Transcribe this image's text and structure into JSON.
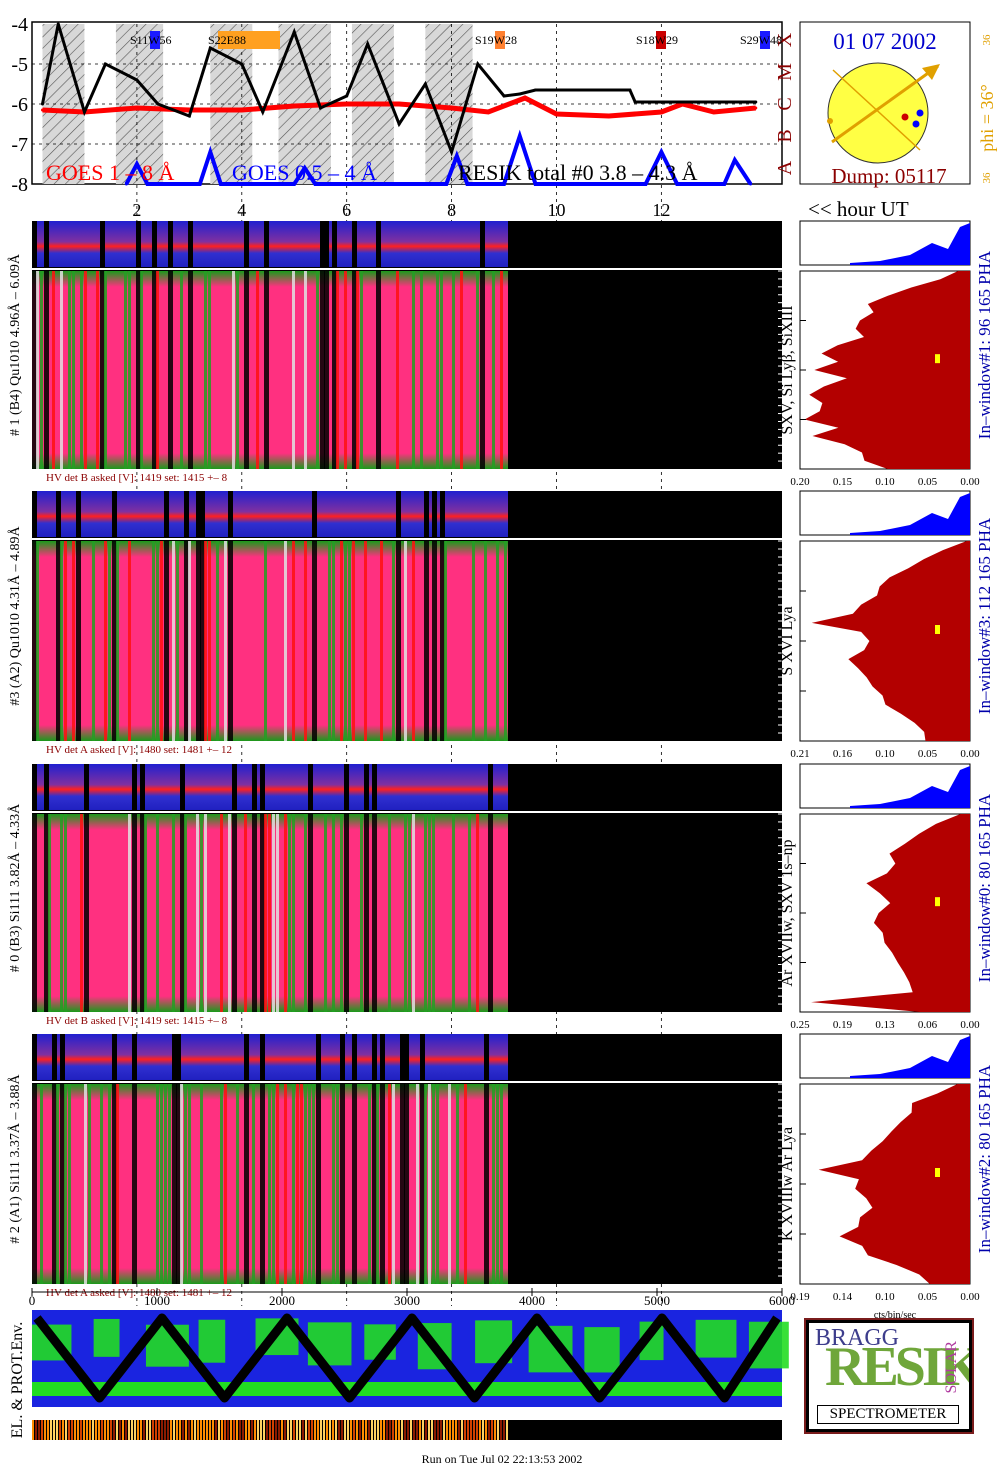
{
  "goes": {
    "ytick_labels": [
      "-4",
      "-5",
      "-6",
      "-7",
      "-8"
    ],
    "class_letters": [
      "X",
      "M",
      "C",
      "B",
      "A"
    ],
    "legend_goes_long": "GOES 1 – 8 Å",
    "legend_goes_short": "GOES 0.5 – 4 Å",
    "legend_resik": "RESIK total #0  3.8 – 4.3 Å",
    "active_regions": [
      {
        "label": "S11W56",
        "color": "#1a1aff"
      },
      {
        "label": "S22E88",
        "color": "#ffa020"
      },
      {
        "label": "S19W28",
        "color": "#ff8030"
      },
      {
        "label": "S18W29",
        "color": "#cc0000"
      },
      {
        "label": "S29W48",
        "color": "#1a1aff"
      }
    ],
    "hour_ticks": [
      "2",
      "4",
      "6",
      "8",
      "10",
      "12"
    ],
    "hour_label": "<< hour UT"
  },
  "sun_panel": {
    "date": "01 07 2002",
    "phi_label": "phi = 36°",
    "phi_small_top": "36",
    "phi_small_bottom": "36",
    "dump": "Dump: 05117"
  },
  "spectra_panels": [
    {
      "id": "1",
      "left_label": "# 1 (B4) Qu1010 4.96Å – 6.09Å",
      "hv_text": "HV det B asked [V]:  1419 set:  1415  +–    8",
      "line_label": "SXV, Si Lyβ, SiXIII",
      "window_label": "In–window#1:   96 165  PHA",
      "axis_ticks": [
        "0.20",
        "0.15",
        "0.10",
        "0.05",
        "0.00"
      ]
    },
    {
      "id": "3",
      "left_label": "#3 (A2) Qu1010  4.31Å – 4.89Å",
      "hv_text": "HV det A asked [V]:  1480 set:  1481  +–    12",
      "line_label": "S XVI Lya",
      "window_label": "In–window#3:  112 165  PHA",
      "axis_ticks": [
        "0.21",
        "0.16",
        "0.10",
        "0.05",
        "0.00"
      ]
    },
    {
      "id": "0",
      "left_label": "# 0 (B3) Si111  3.82Å – 4.33Å",
      "hv_text": "HV det B asked [V]:  1419 set:  1415  +–    8",
      "line_label": "Ar XVIIw,  SXV 1s–np",
      "window_label": "In–window#0:   80 165  PHA",
      "axis_ticks": [
        "0.25",
        "0.19",
        "0.13",
        "0.06",
        "0.00"
      ]
    },
    {
      "id": "2",
      "left_label": "# 2 (A1) Si111  3.37Å – 3.88Å",
      "hv_text": "HV det A asked [V]:  1480 set:  1481  +–    12",
      "line_label": "K XVIIIw  Ar Lya",
      "window_label": "In–window#2:   80 165  PHA",
      "axis_ticks": [
        "0.19",
        "0.14",
        "0.10",
        "0.05",
        "0.00"
      ]
    }
  ],
  "spectra_unit": "cts/bin/sec",
  "bottom": {
    "xtick_labels": [
      "0",
      "1000",
      "2000",
      "3000",
      "4000",
      "5000",
      "6000"
    ],
    "env_label": "EL. & PROT.Env."
  },
  "logo": {
    "bragg": "BRAGG",
    "resik": "RESIK",
    "solar": "SOLAR",
    "spectrometer": "SPECTROMETER"
  },
  "footer": "Run on Tue Jul 02 22:13:53 2002",
  "colors": {
    "goes_long": "#ff0000",
    "goes_short": "#0000ff",
    "resik": "#000000",
    "spectrum_fill": "#b30000",
    "pha_fill": "#0000ff",
    "sun": "#ffff44",
    "orbit_track": "#000000",
    "label_dark_red": "#8b0000",
    "label_blue": "#0000aa",
    "phi_color": "#e0a000"
  },
  "chart_data": [
    {
      "type": "line",
      "title": "",
      "xlabel": "<< hour UT",
      "ylabel": "",
      "x_ticks": [
        2,
        4,
        6,
        8,
        10,
        12
      ],
      "ylim": [
        -8,
        -4
      ],
      "series": [
        {
          "name": "GOES 1 – 8 Å",
          "x": [
            0.2,
            1,
            2,
            3,
            4,
            5,
            6,
            7,
            8,
            8.7,
            9.4,
            10,
            11,
            12,
            12.4,
            13,
            13.8
          ],
          "values": [
            -6.15,
            -6.2,
            -6.1,
            -6.15,
            -6.15,
            -6.05,
            -6.0,
            -6.0,
            -6.1,
            -6.2,
            -5.85,
            -6.25,
            -6.3,
            -6.2,
            -6.0,
            -6.2,
            -6.1
          ]
        },
        {
          "name": "GOES 0.5 – 4 Å",
          "x": [
            1.8,
            2,
            2.2,
            3.2,
            3.4,
            3.6,
            5.0,
            5.2,
            5.4,
            7.9,
            8.1,
            8.3,
            9.0,
            9.3,
            9.6,
            11.7,
            12.0,
            12.3,
            13.2,
            13.4,
            13.7
          ],
          "values": [
            -8,
            -7.5,
            -8,
            -8,
            -7.2,
            -8,
            -8,
            -7.6,
            -8,
            -8,
            -7.3,
            -8,
            -8,
            -6.8,
            -8,
            -8,
            -7.2,
            -8,
            -8,
            -7.4,
            -8
          ]
        },
        {
          "name": "RESIK total #0  3.8 – 4.3 Å",
          "x": [
            0.2,
            0.5,
            1.0,
            1.4,
            2.0,
            2.4,
            3.0,
            3.4,
            4.0,
            4.4,
            5.0,
            5.5,
            6.0,
            6.4,
            7.0,
            7.5,
            8.0,
            8.5,
            9.0,
            9.3,
            9.6,
            11.4,
            11.5,
            13.8
          ],
          "values": [
            -6.0,
            -4.0,
            -6.2,
            -5.0,
            -5.4,
            -6.0,
            -6.3,
            -4.6,
            -5.0,
            -6.2,
            -4.2,
            -6.1,
            -5.8,
            -4.5,
            -6.5,
            -5.5,
            -7.2,
            -5.0,
            -5.8,
            -5.75,
            -5.65,
            -5.65,
            -5.95,
            -5.95
          ]
        }
      ]
    },
    {
      "type": "area",
      "title": "",
      "panels": [
        {
          "id": "1",
          "ylabel": "SXV, Si Lyβ, SiXIII",
          "xlim": [
            0.2,
            0.0
          ],
          "rows_top_to_bottom": [
            0.02,
            0.04,
            0.07,
            0.1,
            0.12,
            0.11,
            0.13,
            0.14,
            0.13,
            0.15,
            0.17,
            0.16,
            0.18,
            0.15,
            0.17,
            0.19,
            0.17,
            0.18,
            0.19,
            0.16,
            0.18,
            0.15,
            0.13,
            0.12,
            0.1
          ]
        },
        {
          "id": "3",
          "ylabel": "S XVI Lya",
          "xlim": [
            0.21,
            0.0
          ],
          "rows_top_to_bottom": [
            0.01,
            0.03,
            0.06,
            0.08,
            0.1,
            0.11,
            0.12,
            0.13,
            0.14,
            0.2,
            0.13,
            0.12,
            0.13,
            0.15,
            0.14,
            0.13,
            0.12,
            0.11,
            0.1,
            0.08,
            0.07,
            0.06,
            0.05
          ]
        },
        {
          "id": "0",
          "ylabel": "Ar XVIIw,  SXV 1s–np",
          "xlim": [
            0.25,
            0.0
          ],
          "rows_top_to_bottom": [
            0.02,
            0.05,
            0.08,
            0.1,
            0.12,
            0.11,
            0.12,
            0.15,
            0.13,
            0.12,
            0.13,
            0.14,
            0.13,
            0.12,
            0.12,
            0.11,
            0.1,
            0.09,
            0.08,
            0.23,
            0.07
          ]
        },
        {
          "id": "2",
          "ylabel": "K XVIIIw  Ar Lya",
          "xlim": [
            0.19,
            0.0
          ],
          "rows_top_to_bottom": [
            0.02,
            0.04,
            0.06,
            0.07,
            0.08,
            0.09,
            0.1,
            0.11,
            0.12,
            0.17,
            0.12,
            0.13,
            0.12,
            0.11,
            0.12,
            0.13,
            0.14,
            0.12,
            0.11,
            0.08,
            0.06,
            0.05
          ]
        }
      ]
    }
  ]
}
